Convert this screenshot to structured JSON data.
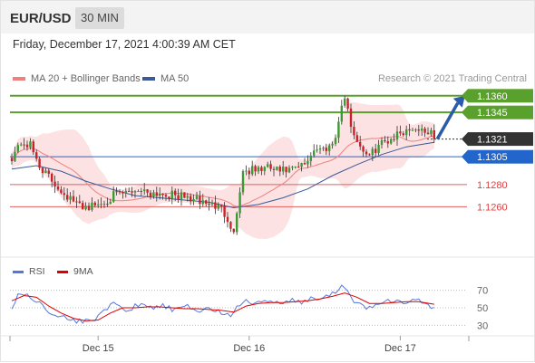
{
  "header": {
    "pair": "EUR/USD",
    "timeframe": "30 MIN"
  },
  "datetime": "Friday, December 17, 2021 4:00:39 AM CET",
  "legend": {
    "ma20_label": "MA 20 + Bollinger Bands",
    "ma50_label": "MA 50",
    "ma20_color": "#f08080",
    "ma50_color": "#3a5a9a"
  },
  "credit": "Research © 2021 Trading Central",
  "rsi_legend": {
    "rsi_label": "RSI",
    "ma_label": "9MA",
    "rsi_color": "#5577dd",
    "ma_color": "#dd0000"
  },
  "chart_data": [
    {
      "type": "candlestick",
      "yrange": [
        1.1217,
        1.1368
      ],
      "x_ticks": [
        "Dec 15",
        "Dec 16",
        "Dec 17"
      ],
      "x_tick_index": [
        28,
        77,
        126
      ],
      "price_levels": [
        {
          "value": 1.136,
          "label": "1.1360",
          "kind": "resistance",
          "color": "#5aa02c"
        },
        {
          "value": 1.1345,
          "label": "1.1345",
          "kind": "resistance",
          "color": "#5aa02c"
        },
        {
          "value": 1.1321,
          "label": "1.1321",
          "kind": "current",
          "color": "#333333"
        },
        {
          "value": 1.1305,
          "label": "1.1305",
          "kind": "pivot",
          "color": "#2266cc"
        },
        {
          "value": 1.128,
          "label": "1.1280",
          "kind": "support",
          "color": "#e06060"
        },
        {
          "value": 1.126,
          "label": "1.1260",
          "kind": "support",
          "color": "#e06060"
        }
      ],
      "anchors": [
        [
          0,
          1.1305
        ],
        [
          3,
          1.1318
        ],
        [
          6,
          1.1315
        ],
        [
          9,
          1.1297
        ],
        [
          13,
          1.1283
        ],
        [
          17,
          1.1272
        ],
        [
          21,
          1.1262
        ],
        [
          25,
          1.126
        ],
        [
          29,
          1.1263
        ],
        [
          33,
          1.127
        ],
        [
          37,
          1.1272
        ],
        [
          41,
          1.1276
        ],
        [
          45,
          1.1273
        ],
        [
          49,
          1.1272
        ],
        [
          53,
          1.127
        ],
        [
          57,
          1.1268
        ],
        [
          61,
          1.1265
        ],
        [
          65,
          1.1262
        ],
        [
          68,
          1.1258
        ],
        [
          70,
          1.125
        ],
        [
          72,
          1.1236
        ],
        [
          73,
          1.1255
        ],
        [
          74,
          1.1275
        ],
        [
          75,
          1.1292
        ],
        [
          79,
          1.1293
        ],
        [
          83,
          1.1295
        ],
        [
          87,
          1.1292
        ],
        [
          91,
          1.1293
        ],
        [
          95,
          1.1298
        ],
        [
          98,
          1.1312
        ],
        [
          101,
          1.1312
        ],
        [
          104,
          1.1317
        ],
        [
          106,
          1.1335
        ],
        [
          107,
          1.1352
        ],
        [
          108,
          1.1358
        ],
        [
          109,
          1.1345
        ],
        [
          111,
          1.1325
        ],
        [
          113,
          1.1315
        ],
        [
          116,
          1.1305
        ],
        [
          119,
          1.1316
        ],
        [
          122,
          1.132
        ],
        [
          126,
          1.1327
        ],
        [
          130,
          1.1331
        ],
        [
          134,
          1.1329
        ],
        [
          136,
          1.1325
        ],
        [
          137,
          1.1321
        ]
      ],
      "ma50": [
        [
          0,
          1.1294
        ],
        [
          8,
          1.1297
        ],
        [
          16,
          1.1292
        ],
        [
          24,
          1.1283
        ],
        [
          32,
          1.1276
        ],
        [
          40,
          1.127
        ],
        [
          48,
          1.1268
        ],
        [
          56,
          1.1266
        ],
        [
          64,
          1.1264
        ],
        [
          72,
          1.1259
        ],
        [
          80,
          1.1262
        ],
        [
          88,
          1.1268
        ],
        [
          96,
          1.1276
        ],
        [
          104,
          1.1288
        ],
        [
          112,
          1.1298
        ],
        [
          120,
          1.1307
        ],
        [
          128,
          1.1314
        ],
        [
          137,
          1.1318
        ]
      ],
      "arrow": {
        "from": [
          138,
          1.1321
        ],
        "to": [
          147,
          1.136
        ]
      }
    },
    {
      "type": "line",
      "name": "RSI",
      "ylim": [
        20,
        80
      ],
      "y_ticks": [
        70,
        50,
        30
      ],
      "rsi_anchors": [
        [
          0,
          50
        ],
        [
          2,
          63
        ],
        [
          5,
          66
        ],
        [
          8,
          58
        ],
        [
          11,
          49
        ],
        [
          15,
          41
        ],
        [
          19,
          36
        ],
        [
          23,
          34
        ],
        [
          27,
          38
        ],
        [
          30,
          48
        ],
        [
          33,
          54
        ],
        [
          37,
          47
        ],
        [
          41,
          53
        ],
        [
          45,
          50
        ],
        [
          49,
          52
        ],
        [
          53,
          47
        ],
        [
          57,
          51
        ],
        [
          61,
          47
        ],
        [
          65,
          49
        ],
        [
          68,
          44
        ],
        [
          71,
          41
        ],
        [
          73,
          52
        ],
        [
          75,
          57
        ],
        [
          79,
          55
        ],
        [
          83,
          58
        ],
        [
          87,
          54
        ],
        [
          91,
          58
        ],
        [
          95,
          57
        ],
        [
          98,
          62
        ],
        [
          101,
          60
        ],
        [
          104,
          66
        ],
        [
          106,
          70
        ],
        [
          107,
          74
        ],
        [
          108,
          73
        ],
        [
          110,
          62
        ],
        [
          112,
          55
        ],
        [
          115,
          50
        ],
        [
          118,
          53
        ],
        [
          121,
          56
        ],
        [
          124,
          59
        ],
        [
          127,
          55
        ],
        [
          130,
          58
        ],
        [
          133,
          57
        ],
        [
          135,
          52
        ],
        [
          137,
          51
        ]
      ],
      "ma_anchors": [
        [
          0,
          58
        ],
        [
          4,
          64
        ],
        [
          8,
          62
        ],
        [
          12,
          52
        ],
        [
          16,
          44
        ],
        [
          20,
          38
        ],
        [
          24,
          35
        ],
        [
          28,
          36
        ],
        [
          32,
          44
        ],
        [
          36,
          50
        ],
        [
          40,
          50
        ],
        [
          44,
          51
        ],
        [
          48,
          51
        ],
        [
          52,
          50
        ],
        [
          56,
          49
        ],
        [
          60,
          49
        ],
        [
          64,
          48
        ],
        [
          68,
          47
        ],
        [
          72,
          45
        ],
        [
          76,
          52
        ],
        [
          80,
          55
        ],
        [
          84,
          56
        ],
        [
          88,
          56
        ],
        [
          92,
          57
        ],
        [
          96,
          58
        ],
        [
          100,
          60
        ],
        [
          104,
          63
        ],
        [
          108,
          67
        ],
        [
          112,
          62
        ],
        [
          116,
          55
        ],
        [
          120,
          55
        ],
        [
          124,
          56
        ],
        [
          128,
          57
        ],
        [
          132,
          57
        ],
        [
          137,
          54
        ]
      ]
    }
  ]
}
